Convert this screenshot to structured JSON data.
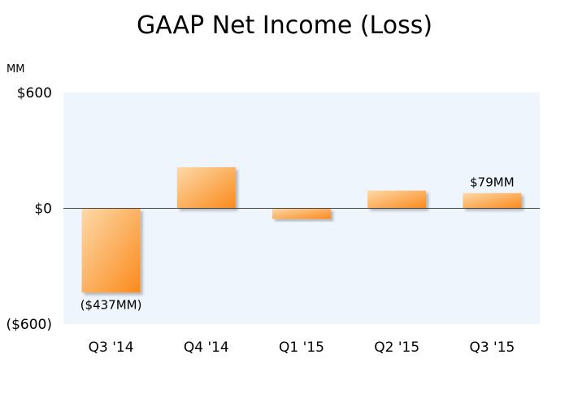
{
  "chart_data": {
    "type": "bar",
    "title": "GAAP Net Income (Loss)",
    "unit": "MM",
    "categories": [
      "Q3 '14",
      "Q4 '14",
      "Q1 '15",
      "Q2 '15",
      "Q3 '15"
    ],
    "values": [
      -437,
      213,
      -55,
      92,
      79
    ],
    "data_labels": [
      "($437MM)",
      "",
      "",
      "",
      "$79MM"
    ],
    "ylim": [
      -600,
      600
    ],
    "y_ticks": [
      {
        "value": 600,
        "label": "$600"
      },
      {
        "value": 0,
        "label": "$0"
      },
      {
        "value": -600,
        "label": "($600)"
      }
    ],
    "grid": false,
    "legend": "none",
    "colors": {
      "plot_background": "#eef5fd",
      "bar_light": "#fdd9a8",
      "bar_dark": "#fb8a1c",
      "axis": "#444444"
    }
  }
}
